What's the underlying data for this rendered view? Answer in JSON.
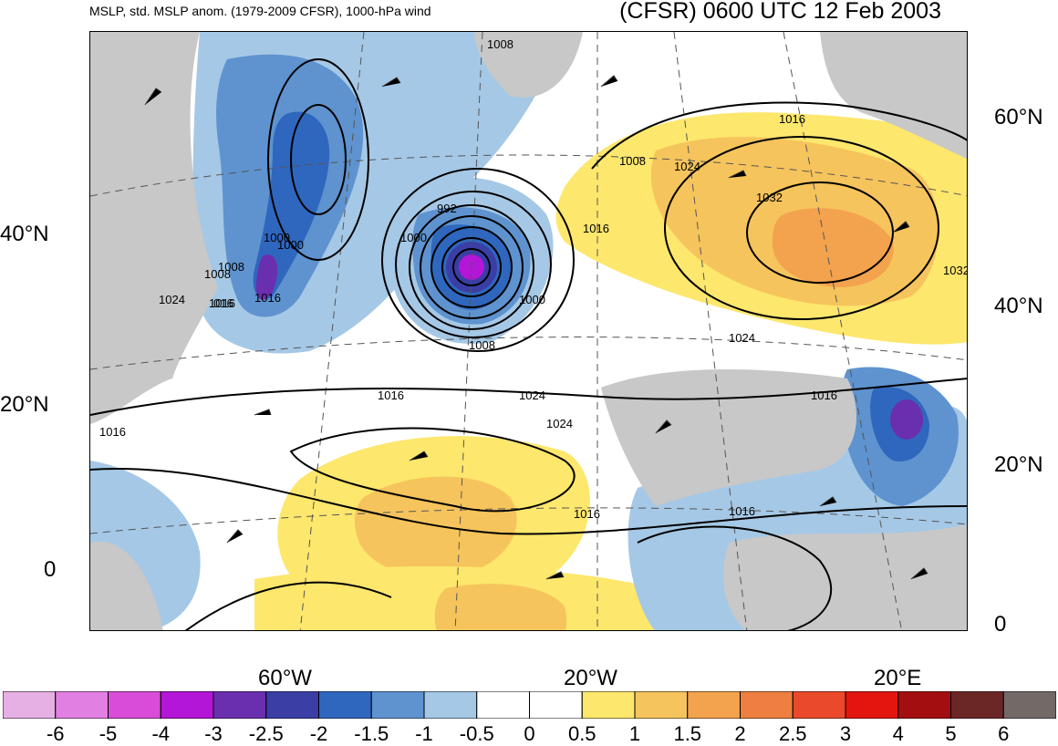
{
  "header": {
    "left_title": "MSLP, std. MSLP anom. (1979-2009 CFSR), 1000-hPa wind",
    "right_title": "(CFSR) 0600 UTC 12 Feb 2003"
  },
  "axes": {
    "left_lat": [
      "40°N",
      "20°N",
      "0"
    ],
    "right_lat": [
      "60°N",
      "40°N",
      "20°N",
      "0"
    ],
    "bottom_lon": [
      "60°W",
      "20°W",
      "20°E"
    ]
  },
  "contour_labels": [
    "1008",
    "1000",
    "1016",
    "1008",
    "1024",
    "1016",
    "1032",
    "1032",
    "992",
    "1000",
    "1016",
    "1000",
    "1008",
    "1000",
    "1008",
    "1024",
    "1024",
    "1016",
    "016",
    "1008",
    "1024",
    "1016",
    "1024",
    "1016",
    "1016",
    "1016",
    "1016",
    "1016"
  ],
  "colorbar": {
    "colors": [
      "#e7b0e4",
      "#e27fe2",
      "#d94cd9",
      "#b316d6",
      "#6a2fae",
      "#3a3ea5",
      "#2f67be",
      "#5e93cf",
      "#a5c8e6",
      "#ffffff",
      "#ffffff",
      "#fde76d",
      "#f6c45c",
      "#f3a24e",
      "#ef7f40",
      "#ea4a2b",
      "#e3150f",
      "#a30f10",
      "#6b2626",
      "#736a68"
    ],
    "labels": [
      "-6",
      "-5",
      "-4",
      "-3",
      "-2.5",
      "-2",
      "-1.5",
      "-1",
      "-0.5",
      "0",
      "0.5",
      "1",
      "1.5",
      "2",
      "2.5",
      "3",
      "4",
      "5",
      "6"
    ]
  }
}
